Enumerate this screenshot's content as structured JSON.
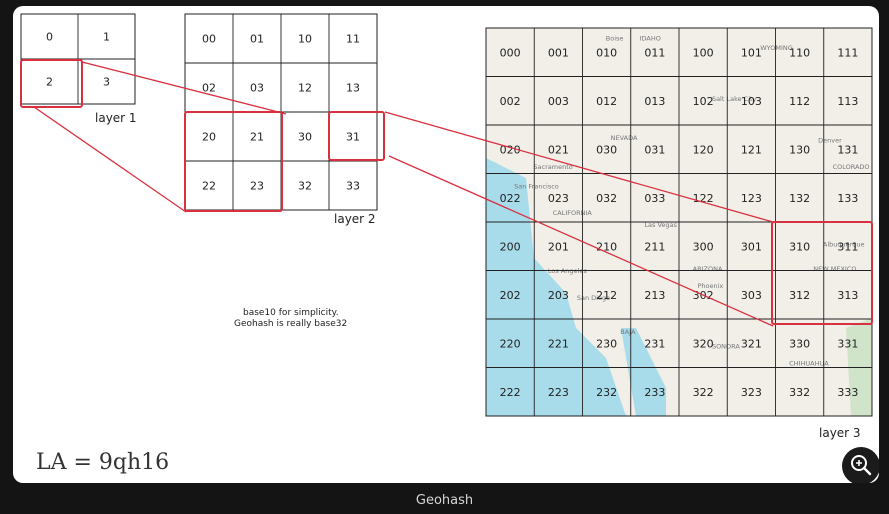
{
  "layer1": {
    "label": "layer 1",
    "cells": [
      "0",
      "1",
      "2",
      "3"
    ],
    "highlight": "2"
  },
  "layer2": {
    "label": "layer 2",
    "cells": [
      "00",
      "01",
      "10",
      "11",
      "02",
      "03",
      "12",
      "13",
      "20",
      "21",
      "30",
      "31",
      "22",
      "23",
      "32",
      "33"
    ]
  },
  "layer3": {
    "label": "layer 3",
    "cells": [
      "000",
      "001",
      "010",
      "011",
      "100",
      "101",
      "110",
      "111",
      "002",
      "003",
      "012",
      "013",
      "102",
      "103",
      "112",
      "113",
      "020",
      "021",
      "030",
      "031",
      "120",
      "121",
      "130",
      "131",
      "022",
      "023",
      "032",
      "033",
      "122",
      "123",
      "132",
      "133",
      "200",
      "201",
      "210",
      "211",
      "300",
      "301",
      "310",
      "311",
      "202",
      "203",
      "212",
      "213",
      "302",
      "303",
      "312",
      "313",
      "220",
      "221",
      "230",
      "231",
      "320",
      "321",
      "330",
      "331",
      "222",
      "223",
      "232",
      "233",
      "322",
      "323",
      "332",
      "333"
    ]
  },
  "map_places": [
    {
      "name": "Boise",
      "c": 2.4,
      "r": 0.05
    },
    {
      "name": "IDAHO",
      "c": 3.1,
      "r": 0.05
    },
    {
      "name": "WYOMING",
      "c": 5.6,
      "r": 0.25
    },
    {
      "name": "Salt Lake City",
      "c": 4.6,
      "r": 1.3
    },
    {
      "name": "NEVADA",
      "c": 2.5,
      "r": 2.1
    },
    {
      "name": "Denver",
      "c": 6.8,
      "r": 2.15
    },
    {
      "name": "Sacramento",
      "c": 0.9,
      "r": 2.7
    },
    {
      "name": "COLORADO",
      "c": 7.1,
      "r": 2.7
    },
    {
      "name": "San Francisco",
      "c": 0.5,
      "r": 3.1
    },
    {
      "name": "CALIFORNIA",
      "c": 1.3,
      "r": 3.65
    },
    {
      "name": "Las Vegas",
      "c": 3.2,
      "r": 3.9
    },
    {
      "name": "Albuquerque",
      "c": 6.9,
      "r": 4.3
    },
    {
      "name": "ARIZONA",
      "c": 4.2,
      "r": 4.8
    },
    {
      "name": "NEW MEXICO",
      "c": 6.7,
      "r": 4.8
    },
    {
      "name": "Los Angeles",
      "c": 1.2,
      "r": 4.85
    },
    {
      "name": "Phoenix",
      "c": 4.3,
      "r": 5.15
    },
    {
      "name": "San Diego",
      "c": 1.8,
      "r": 5.4
    },
    {
      "name": "BAJA",
      "c": 2.7,
      "r": 6.1
    },
    {
      "name": "SONORA",
      "c": 4.6,
      "r": 6.4
    },
    {
      "name": "CHIHUAHUA",
      "c": 6.2,
      "r": 6.75
    }
  ],
  "note": {
    "line1": "base10 for simplicity.",
    "line2": "Geohash is really base32"
  },
  "caption": "LA = 9qh16",
  "footer_title": "Geohash",
  "colors": {
    "highlight": "#d9303f",
    "ink": "#222222",
    "water": "#a8dcea",
    "land": "#f1efe8"
  }
}
